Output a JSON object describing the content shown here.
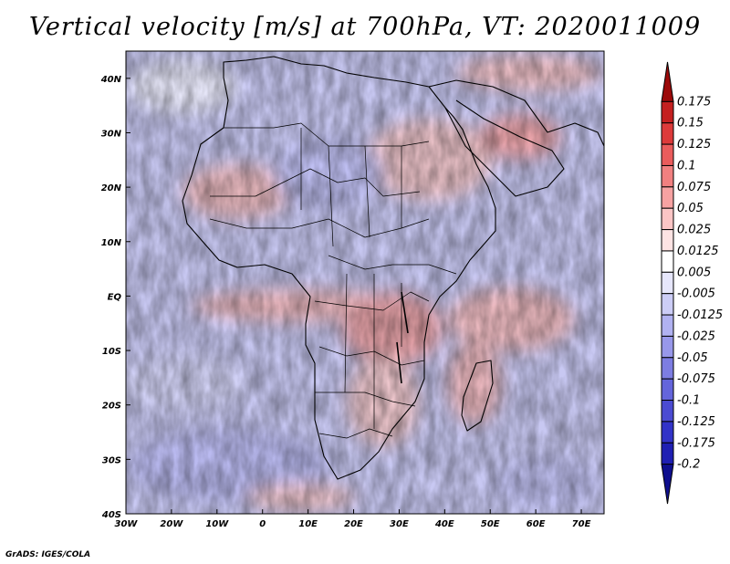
{
  "title": "Vertical velocity [m/s] at 700hPa, VT: 2020011009",
  "credit": "GrADS: IGES/COLA",
  "map": {
    "lon_range": [
      -30,
      75
    ],
    "lat_range": [
      -40,
      45
    ],
    "x_ticks": [
      {
        "value": -30,
        "label": "30W"
      },
      {
        "value": -20,
        "label": "20W"
      },
      {
        "value": -10,
        "label": "10W"
      },
      {
        "value": 0,
        "label": "0"
      },
      {
        "value": 10,
        "label": "10E"
      },
      {
        "value": 20,
        "label": "20E"
      },
      {
        "value": 30,
        "label": "30E"
      },
      {
        "value": 40,
        "label": "40E"
      },
      {
        "value": 50,
        "label": "50E"
      },
      {
        "value": 60,
        "label": "60E"
      },
      {
        "value": 70,
        "label": "70E"
      }
    ],
    "y_ticks": [
      {
        "value": 40,
        "label": "40N"
      },
      {
        "value": 30,
        "label": "30N"
      },
      {
        "value": 20,
        "label": "20N"
      },
      {
        "value": 10,
        "label": "10N"
      },
      {
        "value": 0,
        "label": "EQ"
      },
      {
        "value": -10,
        "label": "10S"
      },
      {
        "value": -20,
        "label": "20S"
      },
      {
        "value": -30,
        "label": "30S"
      },
      {
        "value": -40,
        "label": "40S"
      }
    ]
  },
  "colorbar": {
    "colors": [
      "#9c0a0a",
      "#c42020",
      "#dd3a3a",
      "#ea5c5c",
      "#f18080",
      "#f7a2a2",
      "#fbc5c5",
      "#fde3e3",
      "#ffffff",
      "#e6e6fb",
      "#cccdf6",
      "#b1b2f1",
      "#9898ea",
      "#7d7de2",
      "#6465db",
      "#4b4bd2",
      "#3233c8",
      "#1f1fb3",
      "#0f0f8e"
    ],
    "labels": [
      "0.175",
      "0.15",
      "0.125",
      "0.1",
      "0.075",
      "0.05",
      "0.025",
      "0.0125",
      "0.005",
      "-0.005",
      "-0.0125",
      "-0.025",
      "-0.05",
      "-0.075",
      "-0.1",
      "-0.125",
      "-0.175",
      "-0.2"
    ]
  }
}
